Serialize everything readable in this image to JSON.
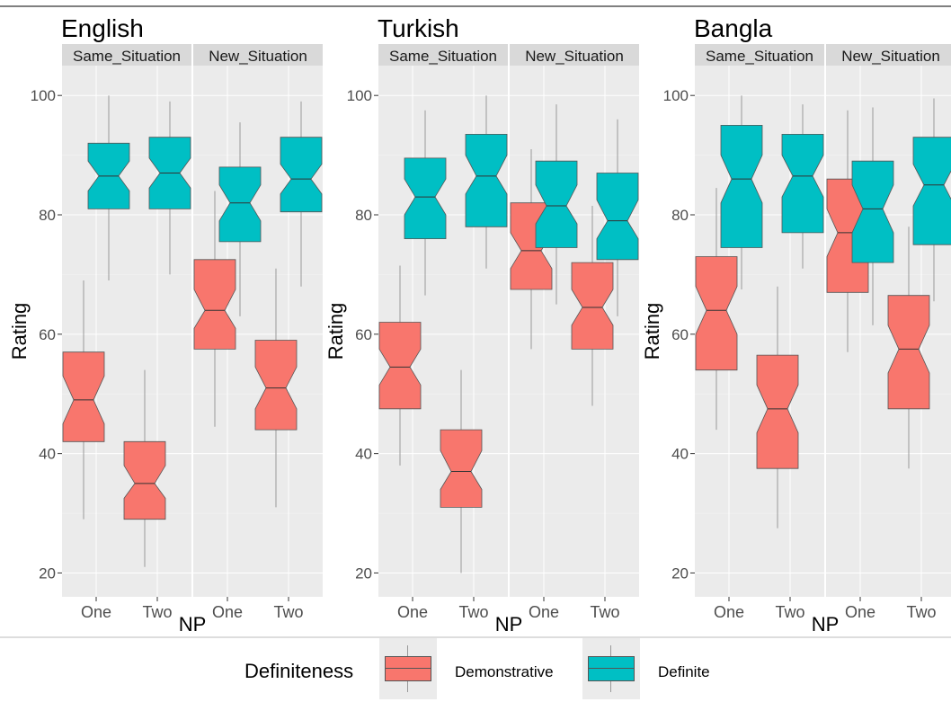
{
  "chart_data": [
    {
      "type": "boxplot",
      "title": "English",
      "facets": [
        "Same_Situation",
        "New_Situation"
      ],
      "categories": [
        "One",
        "Two"
      ],
      "xlabel": "NP",
      "ylabel": "Rating",
      "yticks": [
        20,
        40,
        60,
        80,
        100
      ],
      "ylim": [
        16,
        105
      ],
      "series": [
        {
          "name": "Demonstrative",
          "boxes": [
            {
              "facet": "Same_Situation",
              "np": "One",
              "whisker_low": 29,
              "q1": 42,
              "median": 49,
              "q3": 57,
              "whisker_high": 69,
              "notch_low": 45,
              "notch_high": 53
            },
            {
              "facet": "Same_Situation",
              "np": "Two",
              "whisker_low": 21,
              "q1": 29,
              "median": 35,
              "q3": 42,
              "whisker_high": 54,
              "notch_low": 32.5,
              "notch_high": 38
            },
            {
              "facet": "New_Situation",
              "np": "One",
              "whisker_low": 44.5,
              "q1": 57.5,
              "median": 64,
              "q3": 72.5,
              "whisker_high": 84,
              "notch_low": 61,
              "notch_high": 67.5
            },
            {
              "facet": "New_Situation",
              "np": "Two",
              "whisker_low": 31,
              "q1": 44,
              "median": 51,
              "q3": 59,
              "whisker_high": 71,
              "notch_low": 47.5,
              "notch_high": 54.5
            }
          ]
        },
        {
          "name": "Definite",
          "boxes": [
            {
              "facet": "Same_Situation",
              "np": "One",
              "whisker_low": 69,
              "q1": 81,
              "median": 86.5,
              "q3": 92,
              "whisker_high": 100,
              "notch_low": 84,
              "notch_high": 89
            },
            {
              "facet": "Same_Situation",
              "np": "Two",
              "whisker_low": 70,
              "q1": 81,
              "median": 87,
              "q3": 93,
              "whisker_high": 99,
              "notch_low": 84.5,
              "notch_high": 89.5
            },
            {
              "facet": "New_Situation",
              "np": "One",
              "whisker_low": 63,
              "q1": 75.5,
              "median": 82,
              "q3": 88,
              "whisker_high": 95.5,
              "notch_low": 79,
              "notch_high": 85
            },
            {
              "facet": "New_Situation",
              "np": "Two",
              "whisker_low": 68,
              "q1": 80.5,
              "median": 86,
              "q3": 93,
              "whisker_high": 99,
              "notch_low": 83.5,
              "notch_high": 88.5
            }
          ]
        }
      ]
    },
    {
      "type": "boxplot",
      "title": "Turkish",
      "facets": [
        "Same_Situation",
        "New_Situation"
      ],
      "categories": [
        "One",
        "Two"
      ],
      "xlabel": "NP",
      "ylabel": "Rating",
      "yticks": [
        20,
        40,
        60,
        80,
        100
      ],
      "ylim": [
        16,
        105
      ],
      "series": [
        {
          "name": "Demonstrative",
          "boxes": [
            {
              "facet": "Same_Situation",
              "np": "One",
              "whisker_low": 38,
              "q1": 47.5,
              "median": 54.5,
              "q3": 62,
              "whisker_high": 71.5,
              "notch_low": 51.5,
              "notch_high": 57.5
            },
            {
              "facet": "Same_Situation",
              "np": "Two",
              "whisker_low": 20,
              "q1": 31,
              "median": 37,
              "q3": 44,
              "whisker_high": 54,
              "notch_low": 34,
              "notch_high": 40.5
            },
            {
              "facet": "New_Situation",
              "np": "One",
              "whisker_low": 57.5,
              "q1": 67.5,
              "median": 74,
              "q3": 82,
              "whisker_high": 91,
              "notch_low": 71,
              "notch_high": 77
            },
            {
              "facet": "New_Situation",
              "np": "Two",
              "whisker_low": 48,
              "q1": 57.5,
              "median": 64.5,
              "q3": 72,
              "whisker_high": 81.5,
              "notch_low": 61.5,
              "notch_high": 67.5
            }
          ]
        },
        {
          "name": "Definite",
          "boxes": [
            {
              "facet": "Same_Situation",
              "np": "One",
              "whisker_low": 66.5,
              "q1": 76,
              "median": 83,
              "q3": 89.5,
              "whisker_high": 97.5,
              "notch_low": 80,
              "notch_high": 86
            },
            {
              "facet": "Same_Situation",
              "np": "Two",
              "whisker_low": 71,
              "q1": 78,
              "median": 86.5,
              "q3": 93.5,
              "whisker_high": 100,
              "notch_low": 83.5,
              "notch_high": 90
            },
            {
              "facet": "New_Situation",
              "np": "One",
              "whisker_low": 65,
              "q1": 74.5,
              "median": 81.5,
              "q3": 89,
              "whisker_high": 98.5,
              "notch_low": 78.5,
              "notch_high": 85
            },
            {
              "facet": "New_Situation",
              "np": "Two",
              "whisker_low": 63,
              "q1": 72.5,
              "median": 79,
              "q3": 87,
              "whisker_high": 96,
              "notch_low": 76,
              "notch_high": 82.5
            }
          ]
        }
      ]
    },
    {
      "type": "boxplot",
      "title": "Bangla",
      "facets": [
        "Same_Situation",
        "New_Situation"
      ],
      "categories": [
        "One",
        "Two"
      ],
      "xlabel": "NP",
      "ylabel": "Rating",
      "yticks": [
        20,
        40,
        60,
        80,
        100
      ],
      "ylim": [
        16,
        105
      ],
      "series": [
        {
          "name": "Demonstrative",
          "boxes": [
            {
              "facet": "Same_Situation",
              "np": "One",
              "whisker_low": 44,
              "q1": 54,
              "median": 64,
              "q3": 73,
              "whisker_high": 84.5,
              "notch_low": 60,
              "notch_high": 68
            },
            {
              "facet": "Same_Situation",
              "np": "Two",
              "whisker_low": 27.5,
              "q1": 37.5,
              "median": 47.5,
              "q3": 56.5,
              "whisker_high": 68,
              "notch_low": 43.5,
              "notch_high": 51.5
            },
            {
              "facet": "New_Situation",
              "np": "One",
              "whisker_low": 57,
              "q1": 67,
              "median": 77,
              "q3": 86,
              "whisker_high": 97.5,
              "notch_low": 73,
              "notch_high": 81
            },
            {
              "facet": "New_Situation",
              "np": "Two",
              "whisker_low": 37.5,
              "q1": 47.5,
              "median": 57.5,
              "q3": 66.5,
              "whisker_high": 78,
              "notch_low": 53.5,
              "notch_high": 61.5
            }
          ]
        },
        {
          "name": "Definite",
          "boxes": [
            {
              "facet": "Same_Situation",
              "np": "One",
              "whisker_low": 67.5,
              "q1": 74.5,
              "median": 86,
              "q3": 95,
              "whisker_high": 100,
              "notch_low": 82,
              "notch_high": 90
            },
            {
              "facet": "Same_Situation",
              "np": "Two",
              "whisker_low": 71,
              "q1": 77,
              "median": 86.5,
              "q3": 93.5,
              "whisker_high": 98.5,
              "notch_low": 83,
              "notch_high": 90
            },
            {
              "facet": "New_Situation",
              "np": "One",
              "whisker_low": 61.5,
              "q1": 72,
              "median": 81,
              "q3": 89,
              "whisker_high": 98,
              "notch_low": 77,
              "notch_high": 85
            },
            {
              "facet": "New_Situation",
              "np": "Two",
              "whisker_low": 65.5,
              "q1": 75,
              "median": 85,
              "q3": 93,
              "whisker_high": 99.5,
              "notch_low": 81.5,
              "notch_high": 88.5
            }
          ]
        }
      ]
    }
  ],
  "legend": {
    "title": "Definiteness",
    "items": [
      {
        "label": "Demonstrative",
        "color": "#F8766D"
      },
      {
        "label": "Definite",
        "color": "#00BFC4"
      }
    ]
  },
  "colors": {
    "panel_bg": "#EBEBEB",
    "strip_bg": "#D9D9D9",
    "grid": "#FFFFFF",
    "demonstrative": "#F8766D",
    "definite": "#00BFC4"
  }
}
